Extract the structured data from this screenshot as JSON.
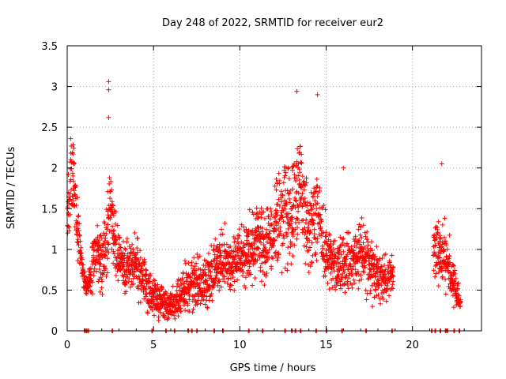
{
  "chart_data": {
    "type": "scatter",
    "title": "Day 248 of 2022, SRMTID for receiver eur2",
    "xlabel": "GPS time / hours",
    "ylabel": "SRMTID / TECUs",
    "xlim": [
      0,
      24
    ],
    "ylim": [
      0,
      3.5
    ],
    "x_ticks": [
      0,
      5,
      10,
      15,
      20
    ],
    "y_ticks": [
      0,
      0.5,
      1,
      1.5,
      2,
      2.5,
      3,
      3.5
    ],
    "x_tick_labels": [
      "0",
      "5",
      "10",
      "15",
      "20"
    ],
    "y_tick_labels": [
      "0",
      "0.5",
      "1",
      "1.5",
      "2",
      "2.5",
      "3",
      "3.5"
    ],
    "grid": true,
    "marker": "plus",
    "color": "#ff0000",
    "envelope": {
      "description": "approximate median level and spread of the scattered SRMTID values versus time",
      "x": [
        0.0,
        0.2,
        0.4,
        0.6,
        0.8,
        1.0,
        1.2,
        1.5,
        1.8,
        2.0,
        2.3,
        2.5,
        2.7,
        3.0,
        3.5,
        4.0,
        4.5,
        5.0,
        5.5,
        6.0,
        6.5,
        7.0,
        7.5,
        8.0,
        8.5,
        9.0,
        9.5,
        10.0,
        10.5,
        11.0,
        11.5,
        12.0,
        12.5,
        13.0,
        13.5,
        14.0,
        14.5,
        15.0,
        15.5,
        16.0,
        16.5,
        17.0,
        17.5,
        18.0,
        18.5,
        18.9,
        21.4,
        21.7,
        22.0,
        22.3,
        22.6,
        22.8
      ],
      "y": [
        1.4,
        1.9,
        1.8,
        1.3,
        0.9,
        0.6,
        0.55,
        0.9,
        1.0,
        0.8,
        1.1,
        1.5,
        1.2,
        0.9,
        0.75,
        0.8,
        0.6,
        0.4,
        0.35,
        0.3,
        0.4,
        0.55,
        0.6,
        0.55,
        0.75,
        0.85,
        0.8,
        0.9,
        1.0,
        1.1,
        1.0,
        1.3,
        1.5,
        1.4,
        1.8,
        1.2,
        1.4,
        1.0,
        0.8,
        0.85,
        0.8,
        1.0,
        0.8,
        0.7,
        0.6,
        0.75,
        1.0,
        0.9,
        0.85,
        0.65,
        0.45,
        0.35
      ],
      "spread": [
        0.6,
        0.5,
        0.6,
        0.5,
        0.3,
        0.15,
        0.15,
        0.5,
        0.4,
        0.5,
        0.5,
        0.6,
        0.5,
        0.4,
        0.4,
        0.4,
        0.35,
        0.25,
        0.25,
        0.25,
        0.3,
        0.35,
        0.35,
        0.35,
        0.45,
        0.45,
        0.4,
        0.45,
        0.5,
        0.55,
        0.5,
        0.6,
        0.7,
        0.65,
        0.8,
        0.6,
        0.6,
        0.5,
        0.4,
        0.45,
        0.4,
        0.5,
        0.45,
        0.4,
        0.35,
        0.3,
        0.45,
        0.5,
        0.45,
        0.35,
        0.2,
        0.15
      ]
    },
    "data_gaps_hours": [
      [
        18.9,
        21.2
      ]
    ],
    "outliers": [
      {
        "x": 2.4,
        "y": 3.06
      },
      {
        "x": 2.4,
        "y": 2.96
      },
      {
        "x": 2.4,
        "y": 2.62
      },
      {
        "x": 13.3,
        "y": 2.94
      },
      {
        "x": 14.5,
        "y": 2.9
      },
      {
        "x": 16.0,
        "y": 2.0
      },
      {
        "x": 21.7,
        "y": 2.05
      },
      {
        "x": 0.2,
        "y": 2.36
      }
    ],
    "zero_value_times": [
      1.0,
      1.1,
      1.2,
      2.6,
      4.9,
      5.7,
      6.2,
      7.0,
      7.2,
      7.5,
      8.5,
      9.0,
      10.5,
      11.3,
      12.6,
      13.0,
      13.2,
      13.5,
      14.4,
      15.0,
      15.9,
      17.3,
      18.8,
      21.1,
      21.3,
      21.6,
      21.9,
      22.0,
      22.4,
      22.7
    ]
  }
}
